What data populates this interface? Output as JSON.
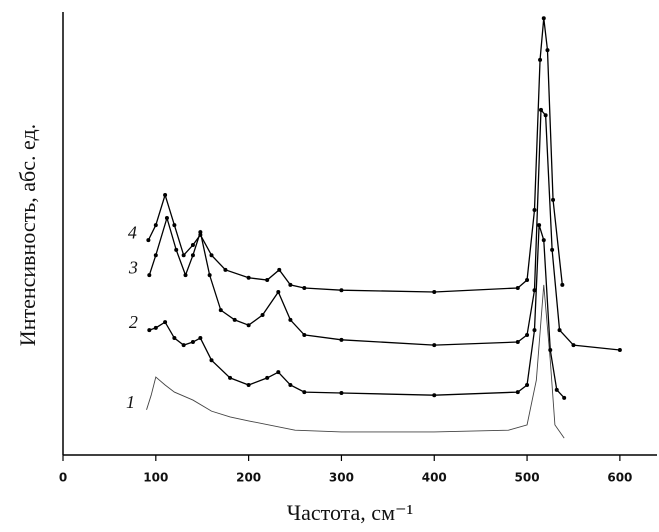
{
  "chart_data": {
    "type": "line",
    "x_label": "Частота, см⁻¹",
    "y_label": "Интенсивность, абс. ед.",
    "xlim": [
      0,
      640
    ],
    "xticks": [
      0,
      100,
      200,
      300,
      400,
      500,
      600
    ],
    "ylim": [
      0,
      100
    ],
    "series": [
      {
        "name": "1",
        "color": "#444444",
        "x": [
          90,
          95,
          100,
          110,
          120,
          140,
          160,
          180,
          200,
          250,
          300,
          400,
          480,
          500,
          510,
          518,
          525,
          530,
          540
        ],
        "values": [
          10.2,
          13.5,
          17.6,
          15.8,
          14.2,
          12.4,
          9.9,
          8.6,
          7.7,
          5.6,
          5.2,
          5.2,
          5.6,
          6.8,
          16.9,
          38.4,
          21.4,
          6.8,
          3.8
        ]
      },
      {
        "name": "2",
        "color": "#000000",
        "marker": "circle",
        "x": [
          93,
          100,
          110,
          120,
          130,
          140,
          148,
          160,
          180,
          200,
          220,
          232,
          245,
          260,
          300,
          400,
          490,
          500,
          508,
          513,
          518,
          525,
          532,
          540
        ],
        "values": [
          28.2,
          28.7,
          30.0,
          26.4,
          24.8,
          25.5,
          26.4,
          21.4,
          17.4,
          15.8,
          17.4,
          18.7,
          15.8,
          14.2,
          14.0,
          13.5,
          14.2,
          15.8,
          28.2,
          51.9,
          48.5,
          23.7,
          14.7,
          12.9
        ]
      },
      {
        "name": "3",
        "color": "#000000",
        "marker": "circle",
        "x": [
          93,
          100,
          112,
          122,
          132,
          140,
          148,
          158,
          170,
          185,
          200,
          215,
          232,
          245,
          260,
          300,
          400,
          490,
          500,
          508,
          515,
          520,
          527,
          535,
          550,
          600
        ],
        "values": [
          40.6,
          45.1,
          53.5,
          46.3,
          40.6,
          45.1,
          50.3,
          40.6,
          32.7,
          30.5,
          29.3,
          31.6,
          36.8,
          30.5,
          27.1,
          26.0,
          24.8,
          25.5,
          27.1,
          37.2,
          77.9,
          76.7,
          46.3,
          28.2,
          24.8,
          23.7
        ]
      },
      {
        "name": "4",
        "color": "#000000",
        "marker": "circle",
        "x": [
          92,
          100,
          110,
          120,
          130,
          140,
          148,
          160,
          175,
          200,
          220,
          233,
          245,
          260,
          300,
          400,
          490,
          500,
          508,
          514,
          518,
          522,
          528,
          538
        ],
        "values": [
          48.5,
          51.9,
          58.7,
          51.9,
          45.1,
          47.4,
          49.7,
          45.1,
          41.8,
          40.0,
          39.5,
          41.8,
          38.4,
          37.7,
          37.2,
          36.8,
          37.7,
          39.5,
          55.3,
          89.2,
          98.6,
          91.4,
          57.6,
          38.4
        ]
      }
    ]
  }
}
